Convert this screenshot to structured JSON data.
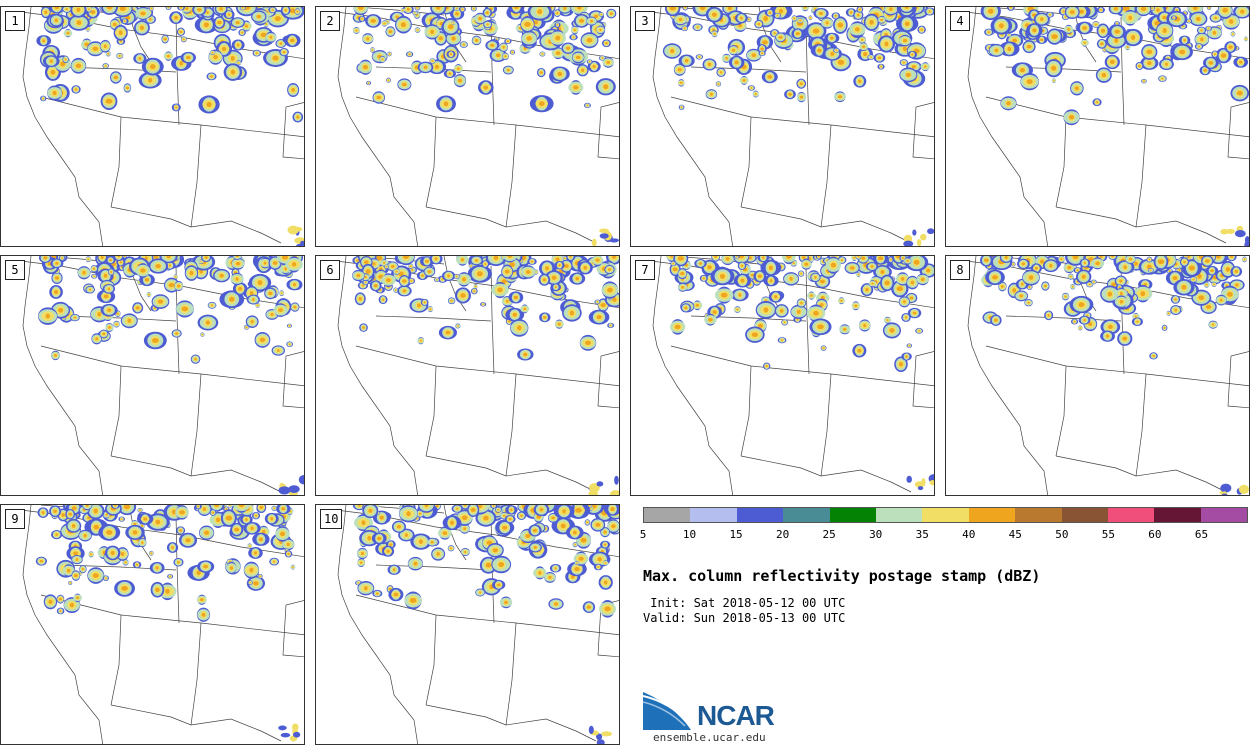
{
  "panels": [
    "1",
    "2",
    "3",
    "4",
    "5",
    "6",
    "7",
    "8",
    "9",
    "10"
  ],
  "colorbar": {
    "colors": [
      "#a6a6a6",
      "#b4bff0",
      "#4e5cd3",
      "#4a8c96",
      "#048204",
      "#bce0bc",
      "#f1de64",
      "#efa51d",
      "#b97a30",
      "#885434",
      "#ef4f7a",
      "#641634",
      "#a44ba4"
    ],
    "tick_labels": [
      "5",
      "10",
      "15",
      "20",
      "25",
      "30",
      "35",
      "40",
      "45",
      "50",
      "55",
      "60",
      "65"
    ]
  },
  "title": "Max. column reflectivity postage stamp (dBZ)",
  "init": " Init: Sat 2018-05-12 00 UTC",
  "valid": "Valid: Sun 2018-05-13 00 UTC",
  "logo": {
    "name": "NCAR",
    "url": "ensemble.ucar.edu"
  }
}
